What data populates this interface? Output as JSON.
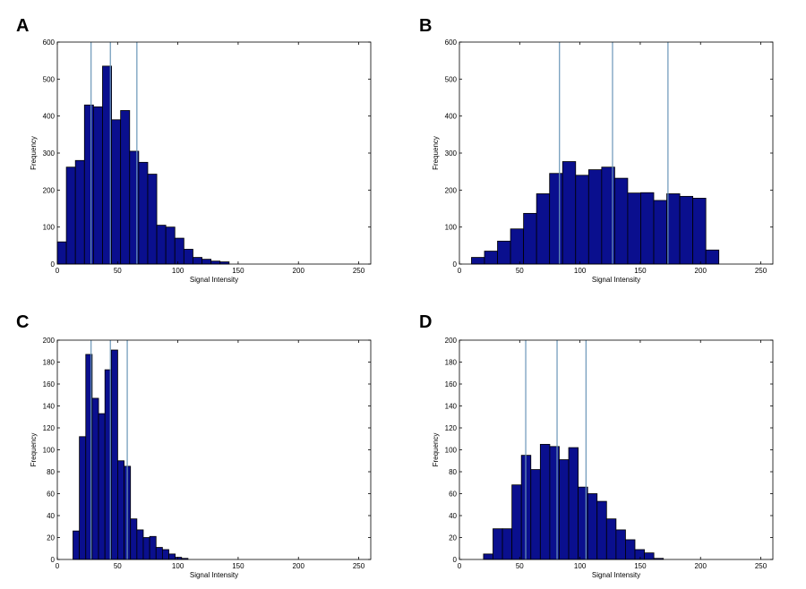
{
  "colors": {
    "bar_fill": "#0a0f8e",
    "bar_edge": "#000000",
    "marker_line": "#6a96b8",
    "axis": "#000000"
  },
  "chart_data": [
    {
      "panel": "A",
      "type": "bar",
      "subtype": "histogram",
      "xlabel": "Signal Intensity",
      "ylabel": "Frequency",
      "xlim": [
        0,
        260
      ],
      "ylim": [
        0,
        600
      ],
      "xticks": [
        0,
        50,
        100,
        150,
        200,
        250
      ],
      "yticks": [
        0,
        100,
        200,
        300,
        400,
        500,
        600
      ],
      "bin_start": 0,
      "bin_width": 7.5,
      "values": [
        60,
        262,
        280,
        430,
        425,
        535,
        390,
        415,
        305,
        275,
        243,
        105,
        100,
        70,
        40,
        18,
        13,
        8,
        6,
        0
      ],
      "markers": [
        28,
        44,
        66
      ]
    },
    {
      "panel": "B",
      "type": "bar",
      "subtype": "histogram",
      "xlabel": "Signal Intensity",
      "ylabel": "Frequency",
      "xlim": [
        0,
        260
      ],
      "ylim": [
        0,
        600
      ],
      "xticks": [
        0,
        50,
        100,
        150,
        200,
        250
      ],
      "yticks": [
        0,
        100,
        200,
        300,
        400,
        500,
        600
      ],
      "bin_start": 10,
      "bin_width": 10.8,
      "values": [
        18,
        35,
        62,
        95,
        137,
        190,
        245,
        277,
        240,
        255,
        262,
        232,
        192,
        193,
        172,
        190,
        183,
        178,
        38
      ],
      "markers": [
        83,
        127,
        173
      ]
    },
    {
      "panel": "C",
      "type": "bar",
      "subtype": "histogram",
      "xlabel": "Signal Intensity",
      "ylabel": "Frequency",
      "xlim": [
        0,
        260
      ],
      "ylim": [
        0,
        200
      ],
      "xticks": [
        0,
        50,
        100,
        150,
        200,
        250
      ],
      "yticks": [
        0,
        20,
        40,
        60,
        80,
        100,
        120,
        140,
        160,
        180,
        200
      ],
      "bin_start": 13,
      "bin_width": 5.3,
      "values": [
        26,
        112,
        187,
        147,
        133,
        173,
        191,
        90,
        85,
        37,
        27,
        20,
        21,
        11,
        9,
        5,
        2,
        1,
        0,
        0
      ],
      "markers": [
        28,
        44,
        58
      ]
    },
    {
      "panel": "D",
      "type": "bar",
      "subtype": "histogram",
      "xlabel": "Signal Intensity",
      "ylabel": "Frequency",
      "xlim": [
        0,
        260
      ],
      "ylim": [
        0,
        200
      ],
      "xticks": [
        0,
        50,
        100,
        150,
        200,
        250
      ],
      "yticks": [
        0,
        20,
        40,
        60,
        80,
        100,
        120,
        140,
        160,
        180,
        200
      ],
      "bin_start": 20,
      "bin_width": 7.85,
      "values": [
        5,
        28,
        28,
        68,
        95,
        82,
        105,
        103,
        91,
        102,
        66,
        60,
        53,
        37,
        27,
        18,
        9,
        6,
        1
      ],
      "markers": [
        55,
        81,
        105
      ]
    }
  ]
}
